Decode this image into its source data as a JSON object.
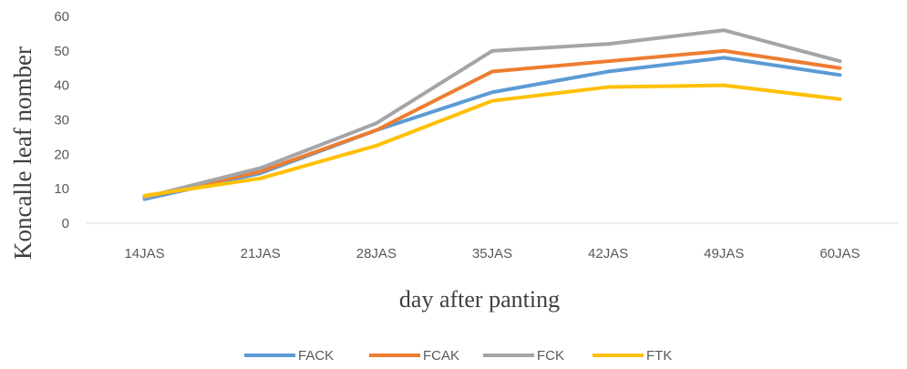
{
  "chart_data": {
    "type": "line",
    "categories": [
      "14JAS",
      "21JAS",
      "28JAS",
      "35JAS",
      "42JAS",
      "49JAS",
      "60JAS"
    ],
    "series": [
      {
        "name": "FACK",
        "color": "#5B9BD5",
        "values": [
          7,
          14.5,
          27,
          38,
          44,
          48,
          43
        ]
      },
      {
        "name": "FCAK",
        "color": "#ED7D31",
        "values": [
          7.5,
          15,
          27,
          44,
          47,
          50,
          45
        ]
      },
      {
        "name": "FCK",
        "color": "#A5A5A5",
        "values": [
          7.5,
          16,
          29,
          50,
          52,
          56,
          47
        ]
      },
      {
        "name": "FTK",
        "color": "#FFC000",
        "values": [
          8,
          13,
          22.5,
          35.5,
          39.5,
          40,
          36
        ]
      }
    ],
    "xlabel": "day after panting",
    "ylabel": "Koncalle leaf nomber",
    "ylim": [
      0,
      60
    ],
    "yticks": [
      0,
      10,
      20,
      30,
      40,
      50,
      60
    ],
    "grid": false,
    "legend": "bottom"
  }
}
